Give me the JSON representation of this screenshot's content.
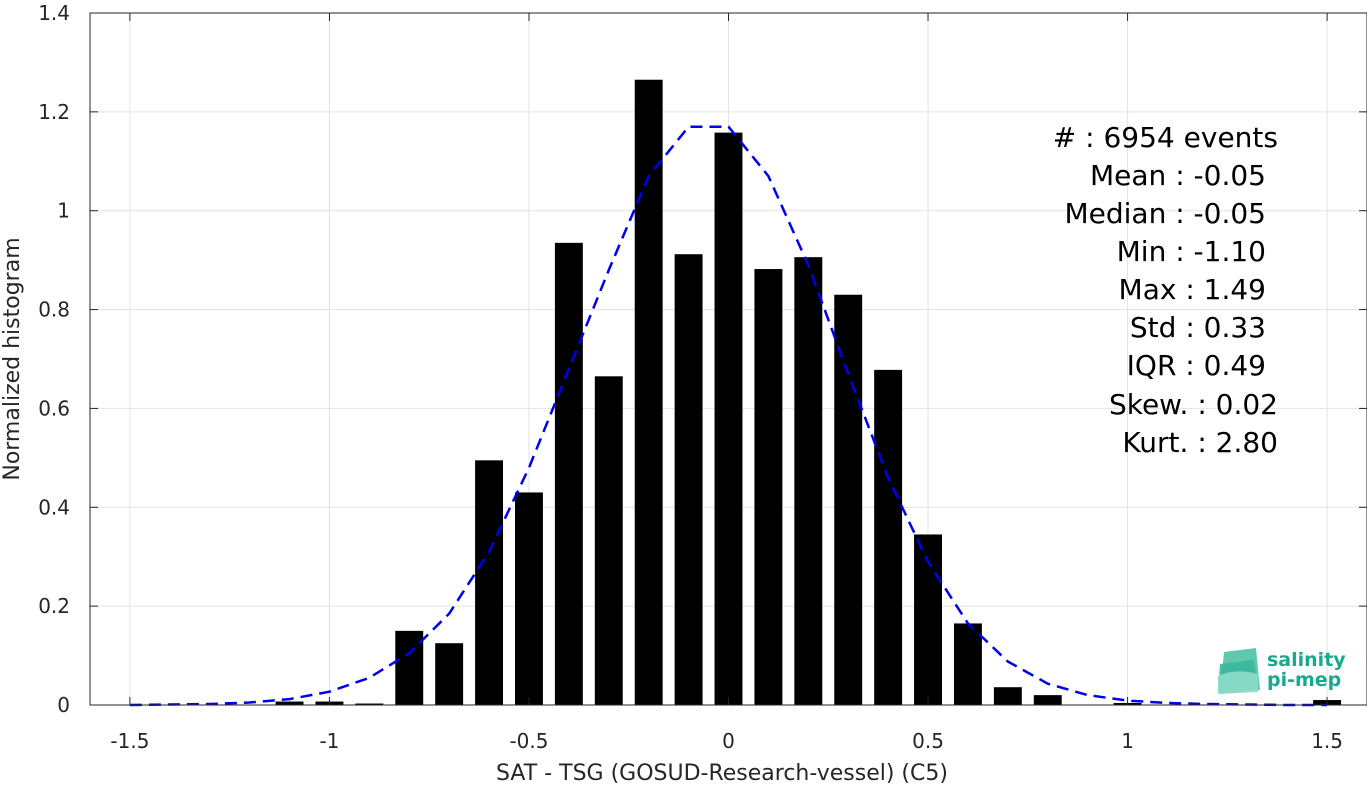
{
  "chart_data": {
    "type": "bar",
    "xlabel": "SAT - TSG (GOSUD-Research-vessel) (C5)",
    "ylabel": "Normalized histogram",
    "xlim": [
      -1.6,
      1.6
    ],
    "ylim": [
      0,
      1.4
    ],
    "grid": true,
    "xticks": [
      -1.5,
      -1,
      -0.5,
      0,
      0.5,
      1,
      1.5
    ],
    "xtick_labels": [
      "-1.5",
      "-1",
      "-0.5",
      "0",
      "0.5",
      "1",
      "1.5"
    ],
    "yticks": [
      0,
      0.2,
      0.4,
      0.6,
      0.8,
      1,
      1.2,
      1.4
    ],
    "ytick_labels": [
      "0",
      "0.2",
      "0.4",
      "0.6",
      "0.8",
      "1",
      "1.2",
      "1.4"
    ],
    "bar_width": 0.07,
    "bar_color": "#000000",
    "bars": {
      "x": [
        -1.1,
        -1.0,
        -0.9,
        -0.8,
        -0.7,
        -0.6,
        -0.5,
        -0.4,
        -0.3,
        -0.2,
        -0.1,
        0.0,
        0.1,
        0.2,
        0.3,
        0.4,
        0.5,
        0.6,
        0.7,
        0.8,
        1.0,
        1.5
      ],
      "values": [
        0.007,
        0.007,
        0.003,
        0.15,
        0.125,
        0.495,
        0.43,
        0.935,
        0.665,
        1.265,
        0.912,
        1.158,
        0.882,
        0.906,
        0.83,
        0.678,
        0.345,
        0.165,
        0.036,
        0.02,
        0.004,
        0.01
      ]
    },
    "fit_curve": {
      "style": "dashed",
      "color": "#0000ee",
      "x": [
        -1.5,
        -1.4,
        -1.3,
        -1.2,
        -1.1,
        -1.0,
        -0.9,
        -0.8,
        -0.7,
        -0.6,
        -0.5,
        -0.4,
        -0.3,
        -0.2,
        -0.1,
        0.0,
        0.1,
        0.2,
        0.3,
        0.4,
        0.5,
        0.6,
        0.7,
        0.8,
        0.9,
        1.0,
        1.1,
        1.2,
        1.3,
        1.4,
        1.5
      ],
      "y": [
        0.0,
        0.001,
        0.002,
        0.005,
        0.012,
        0.027,
        0.055,
        0.105,
        0.185,
        0.31,
        0.48,
        0.68,
        0.88,
        1.07,
        1.17,
        1.17,
        1.07,
        0.89,
        0.67,
        0.46,
        0.29,
        0.165,
        0.088,
        0.043,
        0.02,
        0.009,
        0.004,
        0.002,
        0.001,
        0.0,
        0.0
      ]
    }
  },
  "stats": [
    {
      "label": "#  : 6954 events"
    },
    {
      "label": "Mean : -0.05"
    },
    {
      "label": "Median : -0.05"
    },
    {
      "label": "Min : -1.10"
    },
    {
      "label": "Max : 1.49"
    },
    {
      "label": "Std : 0.33"
    },
    {
      "label": "IQR : 0.49"
    },
    {
      "label": "Skew. : 0.02"
    },
    {
      "label": "Kurt. : 2.80"
    }
  ],
  "logo": {
    "line1": "salinity",
    "line2": "pi-mep"
  }
}
